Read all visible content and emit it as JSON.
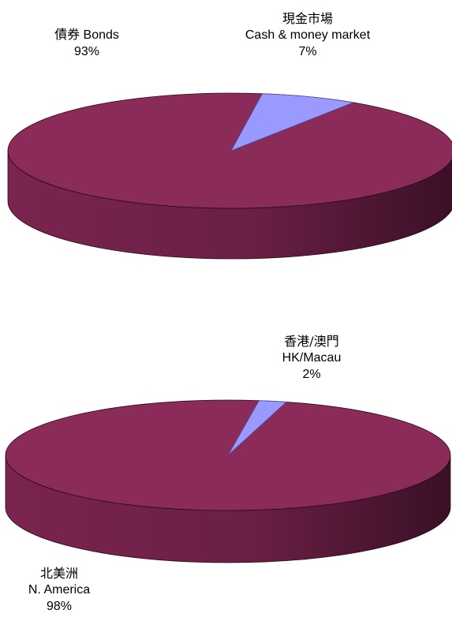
{
  "chart_data": [
    {
      "type": "pie",
      "title": "",
      "categories": [
        "債券 Bonds",
        "現金市場 Cash & money market"
      ],
      "values": [
        93,
        7
      ],
      "colors": [
        "#8b2b5a",
        "#9999ff"
      ],
      "labels": [
        {
          "line1": "債券 Bonds",
          "line2": "",
          "pct": "93%"
        },
        {
          "line1": "現金市場",
          "line2": "Cash & money market",
          "pct": "7%"
        }
      ]
    },
    {
      "type": "pie",
      "title": "",
      "categories": [
        "北美洲 N. America",
        "香港/澳門 HK/Macau"
      ],
      "values": [
        98,
        2
      ],
      "colors": [
        "#8b2b5a",
        "#9999ff"
      ],
      "labels": [
        {
          "line1": "北美洲",
          "line2": "N. America",
          "pct": "98%"
        },
        {
          "line1": "香港/澳門",
          "line2": "HK/Macau",
          "pct": "2%"
        }
      ]
    }
  ]
}
